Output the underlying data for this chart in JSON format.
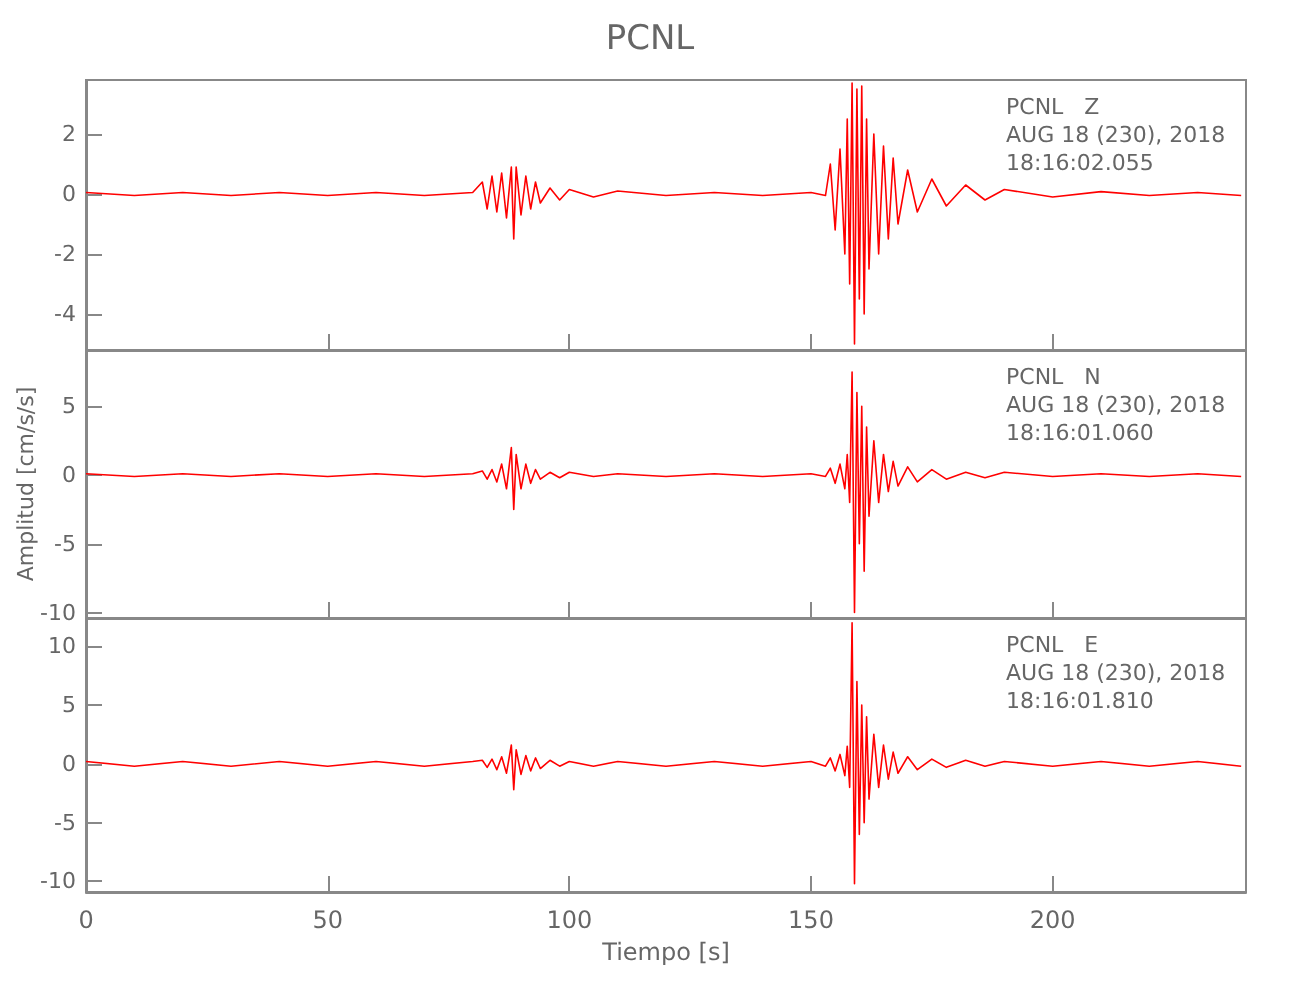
{
  "chart_data": [
    {
      "type": "line",
      "title": "PCNL",
      "marker": "none",
      "tick_labels": "y",
      "xlim": [
        0,
        240
      ],
      "xticks": [
        0,
        50,
        100,
        150,
        200
      ],
      "ylim": [
        -5.2,
        3.8
      ],
      "yticks": [
        -4,
        -2,
        0,
        2
      ],
      "annotations": [
        "PCNL   Z",
        "AUG 18 (230), 2018",
        "18:16:02.055"
      ],
      "series": [
        {
          "color": "#ff0000",
          "x": [
            0,
            10,
            20,
            30,
            40,
            50,
            60,
            70,
            80,
            82,
            83,
            84,
            85,
            86,
            87,
            88,
            88.5,
            89,
            90,
            91,
            92,
            93,
            94,
            96,
            98,
            100,
            105,
            110,
            120,
            130,
            140,
            150,
            153,
            154,
            155,
            156,
            157,
            157.5,
            158,
            158.5,
            159,
            159.5,
            160,
            160.5,
            161,
            161.5,
            162,
            163,
            164,
            165,
            166,
            167,
            168,
            170,
            172,
            175,
            178,
            182,
            186,
            190,
            200,
            210,
            220,
            230,
            239
          ],
          "values": [
            0.05,
            -0.05,
            0.05,
            -0.05,
            0.05,
            -0.05,
            0.05,
            -0.05,
            0.05,
            0.4,
            -0.5,
            0.6,
            -0.6,
            0.7,
            -0.8,
            0.9,
            -1.5,
            0.9,
            -0.7,
            0.6,
            -0.5,
            0.4,
            -0.3,
            0.2,
            -0.2,
            0.15,
            -0.1,
            0.1,
            -0.05,
            0.05,
            -0.05,
            0.05,
            -0.05,
            1.0,
            -1.2,
            1.5,
            -2.0,
            2.5,
            -3.0,
            3.7,
            -5.0,
            3.5,
            -3.5,
            3.6,
            -4.0,
            2.5,
            -2.5,
            2.0,
            -2.0,
            1.6,
            -1.5,
            1.2,
            -1.0,
            0.8,
            -0.6,
            0.5,
            -0.4,
            0.3,
            -0.2,
            0.15,
            -0.1,
            0.08,
            -0.05,
            0.05,
            -0.05
          ]
        }
      ]
    },
    {
      "type": "line",
      "ylabel": "Amplitud [cm/s/s]",
      "marker": "none",
      "tick_labels": "y",
      "xlim": [
        0,
        240
      ],
      "xticks": [
        0,
        50,
        100,
        150,
        200
      ],
      "ylim": [
        -10.4,
        9.1
      ],
      "yticks": [
        -10,
        -5,
        0,
        5
      ],
      "annotations": [
        "PCNL   N",
        "AUG 18 (230), 2018",
        "18:16:01.060"
      ],
      "series": [
        {
          "color": "#ff0000",
          "x": [
            0,
            10,
            20,
            30,
            40,
            50,
            60,
            70,
            80,
            82,
            83,
            84,
            85,
            86,
            87,
            88,
            88.5,
            89,
            90,
            91,
            92,
            93,
            94,
            96,
            98,
            100,
            105,
            110,
            120,
            130,
            140,
            150,
            153,
            154,
            155,
            156,
            157,
            157.5,
            158,
            158.5,
            159,
            159.5,
            160,
            160.5,
            161,
            161.5,
            162,
            163,
            164,
            165,
            166,
            167,
            168,
            170,
            172,
            175,
            178,
            182,
            186,
            190,
            200,
            210,
            220,
            230,
            239
          ],
          "values": [
            0.1,
            -0.1,
            0.1,
            -0.1,
            0.1,
            -0.1,
            0.1,
            -0.1,
            0.1,
            0.3,
            -0.3,
            0.4,
            -0.5,
            0.8,
            -1.0,
            2.0,
            -2.5,
            1.5,
            -1.0,
            0.8,
            -0.6,
            0.4,
            -0.3,
            0.2,
            -0.2,
            0.2,
            -0.1,
            0.1,
            -0.1,
            0.1,
            -0.1,
            0.1,
            -0.1,
            0.5,
            -0.6,
            0.8,
            -1.0,
            1.5,
            -2.0,
            7.5,
            -10.0,
            6.0,
            -5.0,
            5.0,
            -7.0,
            3.5,
            -3.0,
            2.5,
            -2.0,
            1.5,
            -1.2,
            1.0,
            -0.8,
            0.6,
            -0.5,
            0.4,
            -0.3,
            0.2,
            -0.2,
            0.2,
            -0.1,
            0.1,
            -0.1,
            0.1,
            -0.1
          ]
        }
      ]
    },
    {
      "type": "line",
      "xlabel": "Tiempo [s]",
      "marker": "none",
      "xlim": [
        0,
        240
      ],
      "xticks": [
        0,
        50,
        100,
        150,
        200
      ],
      "ylim": [
        -10.9,
        12.4
      ],
      "yticks": [
        -10,
        -5,
        0,
        5,
        10
      ],
      "annotations": [
        "PCNL   E",
        "AUG 18 (230), 2018",
        "18:16:01.810"
      ],
      "series": [
        {
          "color": "#ff0000",
          "x": [
            0,
            10,
            20,
            30,
            40,
            50,
            60,
            70,
            80,
            82,
            83,
            84,
            85,
            86,
            87,
            88,
            88.5,
            89,
            90,
            91,
            92,
            93,
            94,
            96,
            98,
            100,
            105,
            110,
            120,
            130,
            140,
            150,
            153,
            154,
            155,
            156,
            157,
            157.5,
            158,
            158.5,
            159,
            159.5,
            160,
            160.5,
            161,
            161.5,
            162,
            163,
            164,
            165,
            166,
            167,
            168,
            170,
            172,
            175,
            178,
            182,
            186,
            190,
            200,
            210,
            220,
            230,
            239
          ],
          "values": [
            0.2,
            -0.2,
            0.2,
            -0.2,
            0.2,
            -0.2,
            0.2,
            -0.2,
            0.2,
            0.3,
            -0.3,
            0.4,
            -0.5,
            0.6,
            -0.8,
            1.6,
            -2.2,
            1.2,
            -0.9,
            0.7,
            -0.6,
            0.5,
            -0.4,
            0.3,
            -0.2,
            0.2,
            -0.2,
            0.2,
            -0.2,
            0.2,
            -0.2,
            0.2,
            -0.2,
            0.5,
            -0.6,
            0.8,
            -1.0,
            1.5,
            -2.0,
            12.0,
            -10.2,
            7.0,
            -6.0,
            5.0,
            -5.0,
            4.0,
            -3.0,
            2.5,
            -2.0,
            1.6,
            -1.3,
            1.0,
            -0.8,
            0.6,
            -0.5,
            0.4,
            -0.3,
            0.3,
            -0.2,
            0.2,
            -0.2,
            0.2,
            -0.2,
            0.2,
            -0.2
          ]
        }
      ]
    }
  ]
}
